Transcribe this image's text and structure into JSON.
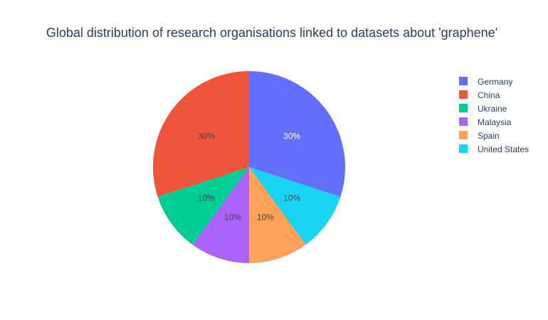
{
  "chart_data": {
    "type": "pie",
    "title": "Global distribution of research organisations linked to datasets about 'graphene'",
    "slices": [
      {
        "label": "Germany",
        "value": 30,
        "text": "30%",
        "color": "#636efa",
        "text_color": "#ffffff"
      },
      {
        "label": "China",
        "value": 30,
        "text": "30%",
        "color": "#ef553b",
        "text_color": "#444444"
      },
      {
        "label": "Ukraine",
        "value": 10,
        "text": "10%",
        "color": "#00cc96",
        "text_color": "#444444"
      },
      {
        "label": "Malaysia",
        "value": 10,
        "text": "10%",
        "color": "#ab63fa",
        "text_color": "#444444"
      },
      {
        "label": "Spain",
        "value": 10,
        "text": "10%",
        "color": "#ffa15a",
        "text_color": "#444444"
      },
      {
        "label": "United States",
        "value": 10,
        "text": "10%",
        "color": "#19d3f3",
        "text_color": "#444444"
      }
    ],
    "draw_order": [
      "Germany",
      "United States",
      "Spain",
      "Malaysia",
      "Ukraine",
      "China"
    ],
    "start": "12 o'clock",
    "direction": "clockwise",
    "legend_position": "top-right"
  }
}
